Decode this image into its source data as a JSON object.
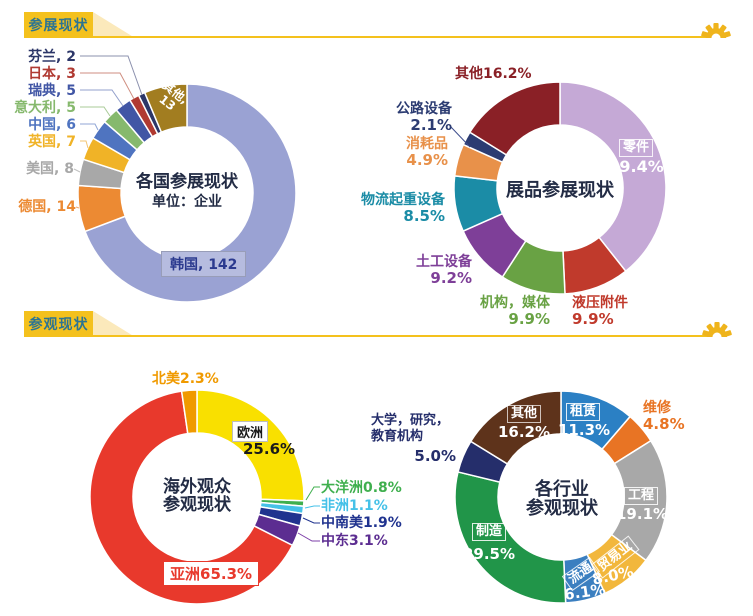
{
  "theme": {
    "accent_yellow": "#f4c11d",
    "accent_yellow_light": "#fbe9bb",
    "badge_text": "#2d7492",
    "gear": "#efb41c",
    "title_color": "#232c45"
  },
  "sections": [
    {
      "badge": "参展现状"
    },
    {
      "badge": "参观现状"
    }
  ],
  "chart_data": [
    {
      "type": "donut",
      "title": "各国参展现状",
      "subtitle": "单位：企业",
      "legend_position": "outside-left",
      "segments": [
        {
          "label": "韩国",
          "value": 142,
          "color": "#9aa2d3",
          "side_label": "韩国, 142"
        },
        {
          "label": "德国",
          "value": 14,
          "color": "#ec8a33",
          "side_label": "德国, 14"
        },
        {
          "label": "美国",
          "value": 8,
          "color": "#a8a8a8",
          "side_label": "美国, 8"
        },
        {
          "label": "英国",
          "value": 7,
          "color": "#f0b327",
          "side_label": "英国, 7"
        },
        {
          "label": "中国",
          "value": 6,
          "color": "#4f74c0",
          "side_label": "中国, 6"
        },
        {
          "label": "意大利",
          "value": 5,
          "color": "#86b96d",
          "side_label": "意大利, 5"
        },
        {
          "label": "瑞典",
          "value": 5,
          "color": "#4156a5",
          "side_label": "瑞典, 5"
        },
        {
          "label": "日本",
          "value": 3,
          "color": "#b03a32",
          "side_label": "日本, 3"
        },
        {
          "label": "芬兰",
          "value": 2,
          "color": "#2c3668",
          "side_label": "芬兰, 2"
        },
        {
          "label": "其他",
          "value": 13,
          "color": "#a27d20",
          "on_line1": "其他,",
          "on_line2": "13"
        }
      ]
    },
    {
      "type": "donut",
      "title": "展品参展现状",
      "legend_position": "outside",
      "segments": [
        {
          "label": "零件",
          "pct": "39.4%",
          "value": 39.4,
          "color": "#c5a9d6"
        },
        {
          "label": "液压附件",
          "pct": "9.9%",
          "value": 9.9,
          "color": "#c03a2c"
        },
        {
          "label": "机构，媒体",
          "pct": "9.9%",
          "value": 9.9,
          "color": "#69a244"
        },
        {
          "label": "土工设备",
          "pct": "9.2%",
          "value": 9.2,
          "color": "#7e3f98"
        },
        {
          "label": "物流起重设备",
          "pct": "8.5%",
          "value": 8.5,
          "color": "#1b8ca6"
        },
        {
          "label": "消耗品",
          "pct": "4.9%",
          "value": 4.9,
          "color": "#e8914a"
        },
        {
          "label": "公路设备",
          "pct": "2.1%",
          "value": 2.1,
          "color": "#2c3c72"
        },
        {
          "label": "其他",
          "pct": "16.2%",
          "value": 16.2,
          "color": "#8a2026"
        }
      ]
    },
    {
      "type": "donut",
      "title_line1": "海外观众",
      "title_line2": "参观现状",
      "legend_position": "outside",
      "segments": [
        {
          "label": "欧洲",
          "pct": "25.6%",
          "value": 25.6,
          "color": "#f9e000"
        },
        {
          "label": "大洋洲",
          "pct": "0.8%",
          "value": 0.8,
          "color": "#3faf4e"
        },
        {
          "label": "非洲",
          "pct": "1.1%",
          "value": 1.1,
          "color": "#45c1e8"
        },
        {
          "label": "中南美",
          "pct": "1.9%",
          "value": 1.9,
          "color": "#20338f"
        },
        {
          "label": "中东",
          "pct": "3.1%",
          "value": 3.1,
          "color": "#5c2d91"
        },
        {
          "label": "亚洲",
          "pct": "65.3%",
          "value": 65.3,
          "color": "#e8392c"
        },
        {
          "label": "北美",
          "pct": "2.3%",
          "value": 2.3,
          "color": "#f09a00"
        }
      ]
    },
    {
      "type": "donut",
      "title_line1": "各行业",
      "title_line2": "参观现状",
      "legend_position": "outside",
      "segments": [
        {
          "label": "租赁",
          "pct": "11.3%",
          "value": 11.3,
          "color": "#2b80c4"
        },
        {
          "label": "维修",
          "pct": "4.8%",
          "value": 4.8,
          "color": "#e87424"
        },
        {
          "label": "工程",
          "pct": "19.1%",
          "value": 19.1,
          "color": "#a8a8a8"
        },
        {
          "label": "贸易业",
          "pct": "8.0%",
          "value": 8.0,
          "color": "#f2b73c"
        },
        {
          "label": "流通",
          "pct": "6.1%",
          "value": 6.1,
          "color": "#3b7fc0"
        },
        {
          "label": "制造",
          "pct": "29.5%",
          "value": 29.5,
          "color": "#219549"
        },
        {
          "label": "大学，研究，教育机构",
          "pct": "5.0%",
          "value": 5.0,
          "color": "#252e6b"
        },
        {
          "label": "其他",
          "pct": "16.2%",
          "value": 16.2,
          "color": "#5e331b"
        }
      ]
    }
  ]
}
